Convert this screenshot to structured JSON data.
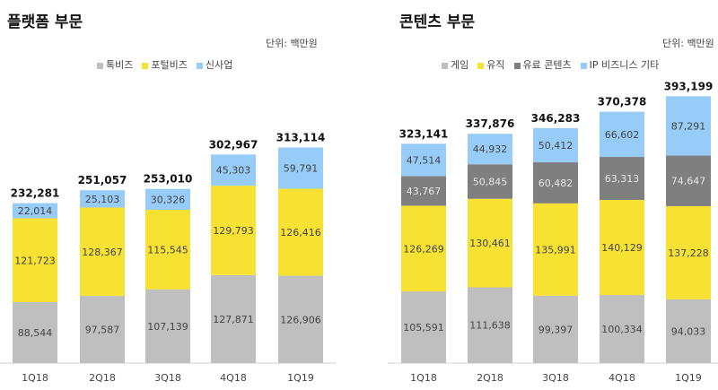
{
  "chart_data": [
    {
      "type": "bar",
      "stacked": true,
      "title": "플랫폼 부문",
      "unit": "단위: 백만원",
      "legend_position": "top",
      "categories": [
        "1Q18",
        "2Q18",
        "3Q18",
        "4Q18",
        "1Q19"
      ],
      "series": [
        {
          "name": "톡비즈",
          "color": "#bfbfbf",
          "values": [
            88544,
            97587,
            107139,
            127871,
            126906
          ]
        },
        {
          "name": "포털비즈",
          "color": "#f7e132",
          "values": [
            121723,
            128367,
            115545,
            129793,
            126416
          ]
        },
        {
          "name": "신사업",
          "color": "#96ccf7",
          "values": [
            22014,
            25103,
            30326,
            45303,
            59791
          ]
        }
      ],
      "totals": [
        232281,
        251057,
        253010,
        302967,
        313114
      ],
      "grid": false
    },
    {
      "type": "bar",
      "stacked": true,
      "title": "콘텐츠 부문",
      "unit": "단위: 백만원",
      "legend_position": "top",
      "categories": [
        "1Q18",
        "2Q18",
        "3Q18",
        "4Q18",
        "1Q19"
      ],
      "series": [
        {
          "name": "게임",
          "color": "#bfbfbf",
          "values": [
            105591,
            111638,
            99397,
            100334,
            94033
          ]
        },
        {
          "name": "유직",
          "color": "#f7e132",
          "values": [
            126269,
            130461,
            135991,
            140129,
            137228
          ]
        },
        {
          "name": "유료 콘텐츠",
          "color": "#7f7f7f",
          "values": [
            43767,
            50845,
            60482,
            63313,
            74647
          ]
        },
        {
          "name": "IP 비즈니스 기타",
          "color": "#96ccf7",
          "values": [
            47514,
            44932,
            50412,
            66602,
            87291
          ]
        }
      ],
      "totals": [
        323141,
        337876,
        346283,
        370378,
        393199
      ],
      "grid": false
    }
  ]
}
